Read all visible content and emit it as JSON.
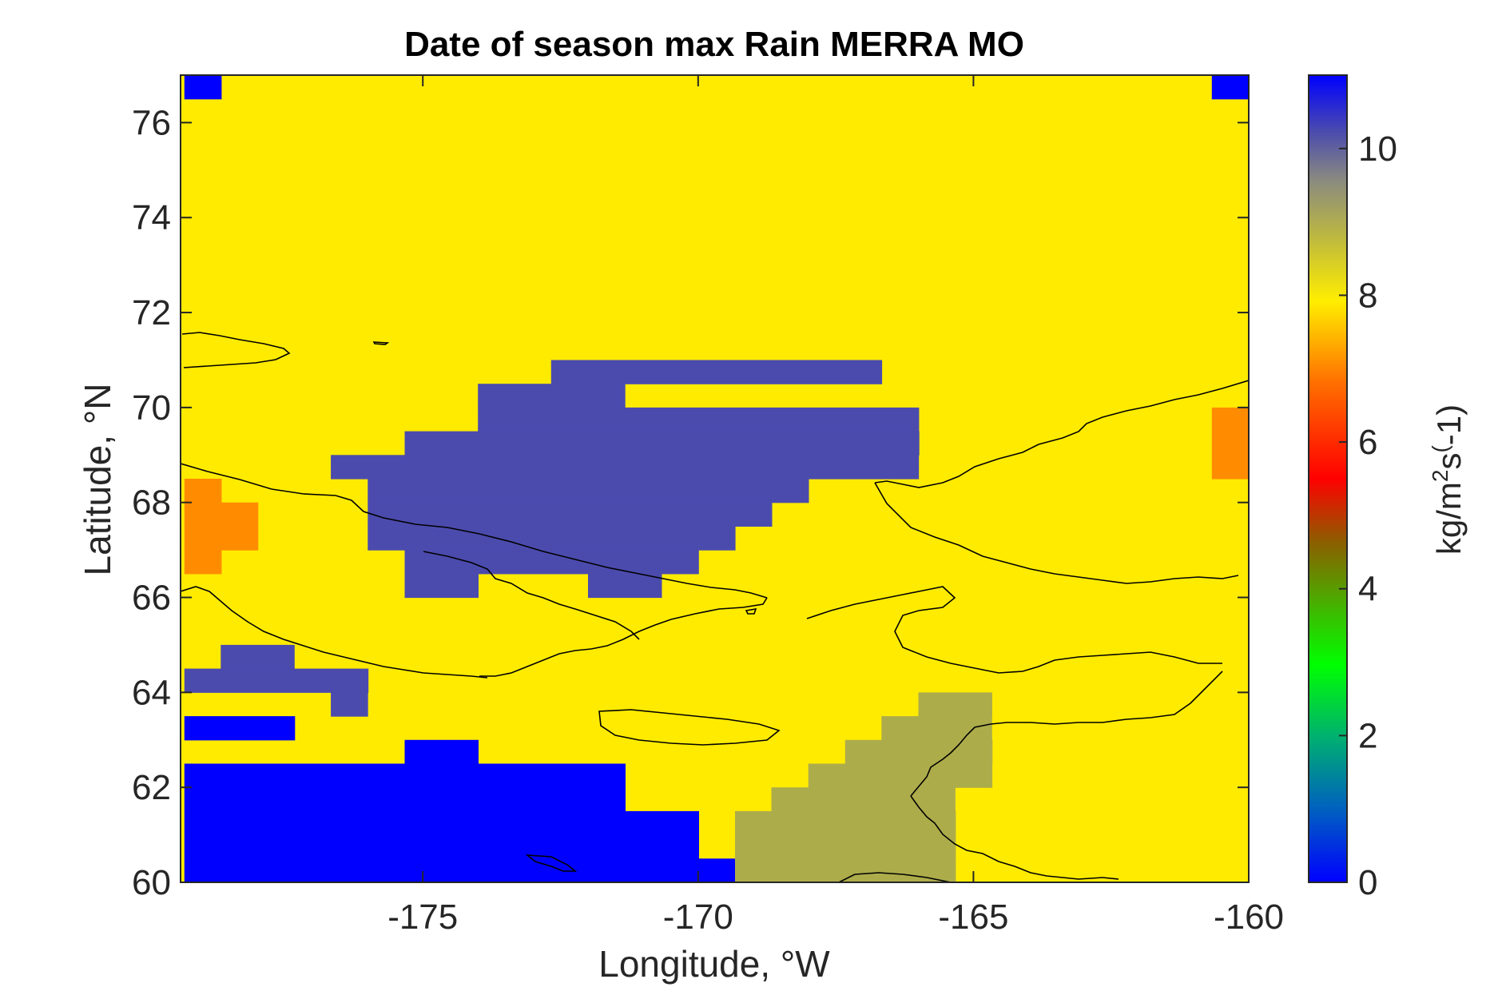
{
  "chart_data": {
    "type": "heatmap",
    "title": "Date of season max Rain MERRA MO",
    "xlabel": "Longitude, °W",
    "ylabel": "Latitude, °N",
    "xlim": [
      -179.4,
      -160
    ],
    "ylim": [
      60,
      77
    ],
    "x_ticks": [
      -175,
      -170,
      -165,
      -160
    ],
    "x_tick_labels": [
      "-175",
      "-170",
      "-165",
      "-160"
    ],
    "y_ticks": [
      60,
      62,
      64,
      66,
      68,
      70,
      72,
      74,
      76
    ],
    "y_tick_labels": [
      "60",
      "62",
      "64",
      "66",
      "68",
      "70",
      "72",
      "74",
      "76"
    ],
    "colorbar": {
      "label_parts": [
        "kg/m",
        "2",
        "s",
        "(",
        "-1)"
      ],
      "range": [
        0,
        11
      ],
      "ticks": [
        0,
        2,
        4,
        6,
        8,
        10
      ],
      "tick_labels": [
        "0",
        "2",
        "4",
        "6",
        "8",
        "10"
      ]
    },
    "grid": false,
    "legend": "none",
    "cell_size": {
      "lon": 0.667,
      "lat": 0.5
    },
    "background_value": 8.25,
    "regions": [
      {
        "value": 10.0,
        "lon_start": -174.0,
        "lat": 70.0,
        "cols": 4
      },
      {
        "value": 10.0,
        "lon_start": -172.67,
        "lat": 70.5,
        "cols": 9
      },
      {
        "value": 10.0,
        "lon_start": -174.0,
        "lat": 69.5,
        "cols": 12
      },
      {
        "value": 10.0,
        "lon_start": -175.33,
        "lat": 69.0,
        "cols": 14
      },
      {
        "value": 10.0,
        "lon_start": -176.67,
        "lat": 68.5,
        "cols": 16
      },
      {
        "value": 10.0,
        "lon_start": -176.0,
        "lat": 68.0,
        "cols": 12
      },
      {
        "value": 10.0,
        "lon_start": -176.0,
        "lat": 67.5,
        "cols": 11
      },
      {
        "value": 10.0,
        "lon_start": -176.0,
        "lat": 67.0,
        "cols": 10
      },
      {
        "value": 10.0,
        "lon_start": -175.33,
        "lat": 66.5,
        "cols": 8
      },
      {
        "value": 10.0,
        "lon_start": -175.33,
        "lat": 66.0,
        "cols": 2
      },
      {
        "value": 10.0,
        "lon_start": -172.0,
        "lat": 66.0,
        "cols": 2
      },
      {
        "value": 10.0,
        "lon_start": -178.67,
        "lat": 64.5,
        "cols": 2
      },
      {
        "value": 10.0,
        "lon_start": -179.33,
        "lat": 64.0,
        "cols": 5
      },
      {
        "value": 10.0,
        "lon_start": -176.67,
        "lat": 63.5,
        "cols": 1
      },
      {
        "value": 11.0,
        "lon_start": -179.33,
        "lat": 63.0,
        "cols": 3
      },
      {
        "value": 11.0,
        "lon_start": -175.33,
        "lat": 62.5,
        "cols": 2
      },
      {
        "value": 11.0,
        "lon_start": -179.33,
        "lat": 62.0,
        "cols": 12
      },
      {
        "value": 11.0,
        "lon_start": -179.33,
        "lat": 61.5,
        "cols": 12
      },
      {
        "value": 11.0,
        "lon_start": -179.33,
        "lat": 61.0,
        "cols": 14
      },
      {
        "value": 11.0,
        "lon_start": -179.33,
        "lat": 60.5,
        "cols": 14
      },
      {
        "value": 11.0,
        "lon_start": -179.33,
        "lat": 60.0,
        "cols": 15
      },
      {
        "value": 9.0,
        "lon_start": -166.0,
        "lat": 63.5,
        "cols": 2
      },
      {
        "value": 9.0,
        "lon_start": -166.67,
        "lat": 63.0,
        "cols": 3
      },
      {
        "value": 9.0,
        "lon_start": -167.33,
        "lat": 62.5,
        "cols": 4
      },
      {
        "value": 9.0,
        "lon_start": -168.0,
        "lat": 62.0,
        "cols": 5
      },
      {
        "value": 9.0,
        "lon_start": -168.67,
        "lat": 61.5,
        "cols": 5
      },
      {
        "value": 9.0,
        "lon_start": -169.33,
        "lat": 61.0,
        "cols": 6
      },
      {
        "value": 9.0,
        "lon_start": -169.33,
        "lat": 60.5,
        "cols": 6
      },
      {
        "value": 9.0,
        "lon_start": -169.33,
        "lat": 60.0,
        "cols": 6
      },
      {
        "value": 7.0,
        "lon_start": -179.33,
        "lat": 68.0,
        "cols": 1
      },
      {
        "value": 7.0,
        "lon_start": -179.33,
        "lat": 67.5,
        "cols": 2
      },
      {
        "value": 7.0,
        "lon_start": -179.33,
        "lat": 67.0,
        "cols": 2
      },
      {
        "value": 7.0,
        "lon_start": -179.33,
        "lat": 66.5,
        "cols": 1
      },
      {
        "value": 7.0,
        "lon_start": -160.67,
        "lat": 69.5,
        "cols": 1
      },
      {
        "value": 7.0,
        "lon_start": -160.67,
        "lat": 69.0,
        "cols": 1
      },
      {
        "value": 7.0,
        "lon_start": -160.67,
        "lat": 68.5,
        "cols": 1
      },
      {
        "value": 11.0,
        "lon_start": -179.33,
        "lat": 76.5,
        "cols": 1
      },
      {
        "value": 11.0,
        "lon_start": -160.67,
        "lat": 76.5,
        "cols": 1
      }
    ],
    "colors": {
      "value_7": "#ff8c00",
      "value_8_25": "#ffeb00",
      "value_9": "#adac4b",
      "value_10": "#4b4bae",
      "value_11": "#0000ff"
    }
  }
}
